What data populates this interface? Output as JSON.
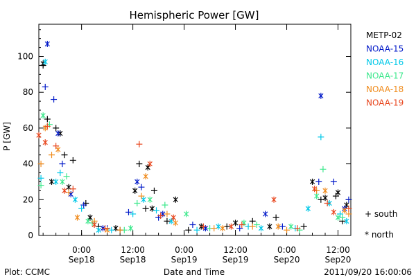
{
  "chart_data": {
    "type": "scatter",
    "title": "Hemispheric Power [GW]",
    "xlabel": "Date and Time",
    "ylabel": "P [GW]",
    "ylim": [
      0,
      118
    ],
    "xlim": [
      "2011-09-17T14:00",
      "2011-09-20T15:00"
    ],
    "yticks": [
      0,
      20,
      40,
      60,
      80,
      100
    ],
    "xticks": [
      {
        "time": "2011-09-18T00:00",
        "label1": "0:00",
        "label2": "Sep18"
      },
      {
        "time": "2011-09-18T12:00",
        "label1": "12:00",
        "label2": "Sep18"
      },
      {
        "time": "2011-09-19T00:00",
        "label1": "0:00",
        "label2": "Sep19"
      },
      {
        "time": "2011-09-19T12:00",
        "label1": "12:00",
        "label2": "Sep19"
      },
      {
        "time": "2011-09-20T00:00",
        "label1": "0:00",
        "label2": "Sep20"
      },
      {
        "time": "2011-09-20T12:00",
        "label1": "12:00",
        "label2": "Sep20"
      }
    ],
    "grid": false,
    "legend_position": "right",
    "series": [
      {
        "name": "METP-02",
        "color": "#000000",
        "south": [
          [
            "2011-09-17T15:00",
            95
          ],
          [
            "2011-09-17T16:00",
            65
          ],
          [
            "2011-09-17T18:00",
            60
          ],
          [
            "2011-09-17T20:00",
            45
          ],
          [
            "2011-09-17T22:00",
            42
          ],
          [
            "2011-09-18T01:00",
            18
          ],
          [
            "2011-09-18T04:00",
            5
          ],
          [
            "2011-09-18T09:00",
            3
          ],
          [
            "2011-09-18T13:30",
            40
          ],
          [
            "2011-09-18T15:00",
            15
          ],
          [
            "2011-09-18T17:00",
            25
          ],
          [
            "2011-09-18T20:00",
            8
          ],
          [
            "2011-09-19T01:00",
            3
          ],
          [
            "2011-09-19T10:00",
            5
          ],
          [
            "2011-09-19T16:00",
            8
          ],
          [
            "2011-09-19T21:30",
            10
          ],
          [
            "2011-09-20T04:00",
            5
          ],
          [
            "2011-09-20T08:00",
            20
          ],
          [
            "2011-09-20T11:30",
            22
          ],
          [
            "2011-09-20T13:00",
            8
          ]
        ],
        "north": [
          [
            "2011-09-17T15:00",
            96
          ],
          [
            "2011-09-17T17:00",
            30
          ],
          [
            "2011-09-17T19:00",
            57
          ],
          [
            "2011-09-17T21:00",
            27
          ],
          [
            "2011-09-18T02:00",
            10
          ],
          [
            "2011-09-18T08:00",
            4
          ],
          [
            "2011-09-18T12:30",
            25
          ],
          [
            "2011-09-18T15:30",
            38
          ],
          [
            "2011-09-18T16:30",
            15
          ],
          [
            "2011-09-18T22:00",
            20
          ],
          [
            "2011-09-19T04:00",
            5
          ],
          [
            "2011-09-19T12:00",
            7
          ],
          [
            "2011-09-19T20:00",
            5
          ],
          [
            "2011-09-20T06:00",
            30
          ],
          [
            "2011-09-20T09:00",
            21
          ],
          [
            "2011-09-20T12:00",
            24
          ],
          [
            "2011-09-20T14:00",
            17
          ]
        ]
      },
      {
        "name": "NOAA-15",
        "color": "#0018c8",
        "south": [
          [
            "2011-09-17T15:30",
            83
          ],
          [
            "2011-09-17T17:30",
            76
          ],
          [
            "2011-09-17T19:30",
            40
          ],
          [
            "2011-09-18T00:30",
            17
          ],
          [
            "2011-09-18T06:00",
            4
          ],
          [
            "2011-09-18T11:00",
            13
          ],
          [
            "2011-09-18T14:00",
            27
          ],
          [
            "2011-09-18T18:00",
            10
          ],
          [
            "2011-09-19T02:00",
            6
          ],
          [
            "2011-09-19T13:00",
            4
          ],
          [
            "2011-09-19T23:00",
            5
          ],
          [
            "2011-09-20T07:30",
            30
          ],
          [
            "2011-09-20T11:00",
            30
          ],
          [
            "2011-09-20T14:30",
            20
          ]
        ],
        "north": [
          [
            "2011-09-17T16:00",
            107
          ],
          [
            "2011-09-17T18:30",
            57
          ],
          [
            "2011-09-17T21:30",
            23
          ],
          [
            "2011-09-18T05:00",
            4
          ],
          [
            "2011-09-18T13:00",
            30
          ],
          [
            "2011-09-18T19:00",
            12
          ],
          [
            "2011-09-19T05:00",
            4
          ],
          [
            "2011-09-19T19:00",
            12
          ],
          [
            "2011-09-20T08:00",
            78
          ],
          [
            "2011-09-20T13:30",
            15
          ]
        ]
      },
      {
        "name": "NOAA-16",
        "color": "#00c8e8",
        "south": [
          [
            "2011-09-17T14:30",
            32
          ],
          [
            "2011-09-17T19:00",
            35
          ],
          [
            "2011-09-18T00:00",
            15
          ],
          [
            "2011-09-18T07:00",
            3
          ],
          [
            "2011-09-18T12:00",
            12
          ],
          [
            "2011-09-18T17:30",
            14
          ],
          [
            "2011-09-19T03:00",
            3
          ],
          [
            "2011-09-19T15:00",
            5
          ],
          [
            "2011-09-20T02:00",
            4
          ],
          [
            "2011-09-20T08:00",
            55
          ],
          [
            "2011-09-20T12:30",
            12
          ]
        ],
        "north": [
          [
            "2011-09-17T15:30",
            97
          ],
          [
            "2011-09-17T18:00",
            30
          ],
          [
            "2011-09-17T22:30",
            20
          ],
          [
            "2011-09-18T04:00",
            3
          ],
          [
            "2011-09-18T14:30",
            20
          ],
          [
            "2011-09-18T21:00",
            8
          ],
          [
            "2011-09-19T08:00",
            5
          ],
          [
            "2011-09-19T18:00",
            4
          ],
          [
            "2011-09-20T05:00",
            15
          ],
          [
            "2011-09-20T10:00",
            18
          ],
          [
            "2011-09-20T14:00",
            8
          ]
        ]
      },
      {
        "name": "NOAA-17",
        "color": "#3ce88c",
        "south": [
          [
            "2011-09-17T14:30",
            28
          ],
          [
            "2011-09-17T16:30",
            62
          ],
          [
            "2011-09-17T20:30",
            33
          ],
          [
            "2011-09-18T02:30",
            7
          ],
          [
            "2011-09-18T10:00",
            3
          ],
          [
            "2011-09-18T13:00",
            18
          ],
          [
            "2011-09-18T19:30",
            17
          ],
          [
            "2011-09-19T06:00",
            4
          ],
          [
            "2011-09-19T17:00",
            6
          ],
          [
            "2011-09-20T03:00",
            3
          ],
          [
            "2011-09-20T08:30",
            37
          ],
          [
            "2011-09-20T13:00",
            10
          ]
        ],
        "north": [
          [
            "2011-09-17T15:00",
            67
          ],
          [
            "2011-09-17T19:30",
            30
          ],
          [
            "2011-09-18T01:30",
            8
          ],
          [
            "2011-09-18T11:30",
            4
          ],
          [
            "2011-09-18T16:00",
            20
          ],
          [
            "2011-09-19T00:30",
            12
          ],
          [
            "2011-09-19T14:00",
            7
          ],
          [
            "2011-09-20T01:00",
            5
          ],
          [
            "2011-09-20T07:00",
            22
          ],
          [
            "2011-09-20T12:00",
            10
          ]
        ]
      },
      {
        "name": "NOAA-18",
        "color": "#f08c1e",
        "south": [
          [
            "2011-09-17T14:30",
            40
          ],
          [
            "2011-09-17T17:00",
            45
          ],
          [
            "2011-09-17T21:00",
            24
          ],
          [
            "2011-09-18T03:00",
            8
          ],
          [
            "2011-09-18T09:00",
            3
          ],
          [
            "2011-09-18T14:00",
            22
          ],
          [
            "2011-09-18T20:00",
            12
          ],
          [
            "2011-09-19T07:00",
            4
          ],
          [
            "2011-09-19T16:00",
            5
          ],
          [
            "2011-09-20T00:00",
            3
          ],
          [
            "2011-09-20T07:00",
            25
          ],
          [
            "2011-09-20T14:30",
            12
          ]
        ],
        "north": [
          [
            "2011-09-17T15:30",
            60
          ],
          [
            "2011-09-17T18:30",
            48
          ],
          [
            "2011-09-17T23:00",
            10
          ],
          [
            "2011-09-18T06:00",
            3
          ],
          [
            "2011-09-18T15:00",
            33
          ],
          [
            "2011-09-18T22:00",
            7
          ],
          [
            "2011-09-19T09:00",
            4
          ],
          [
            "2011-09-19T22:00",
            5
          ],
          [
            "2011-09-20T09:00",
            25
          ],
          [
            "2011-09-20T13:30",
            14
          ]
        ]
      },
      {
        "name": "NOAA-19",
        "color": "#e8461e",
        "south": [
          [
            "2011-09-17T16:00",
            61
          ],
          [
            "2011-09-17T18:00",
            50
          ],
          [
            "2011-09-17T22:00",
            26
          ],
          [
            "2011-09-18T05:30",
            4
          ],
          [
            "2011-09-18T13:30",
            51
          ],
          [
            "2011-09-18T18:30",
            11
          ],
          [
            "2011-09-19T04:30",
            5
          ],
          [
            "2011-09-19T13:30",
            6
          ],
          [
            "2011-09-20T02:30",
            4
          ],
          [
            "2011-09-20T09:30",
            18
          ],
          [
            "2011-09-20T14:30",
            15
          ]
        ],
        "north": [
          [
            "2011-09-17T14:00",
            56
          ],
          [
            "2011-09-17T15:30",
            52
          ],
          [
            "2011-09-17T20:00",
            25
          ],
          [
            "2011-09-18T03:00",
            6
          ],
          [
            "2011-09-18T16:00",
            40
          ],
          [
            "2011-09-18T21:30",
            10
          ],
          [
            "2011-09-19T11:00",
            5
          ],
          [
            "2011-09-19T21:00",
            20
          ],
          [
            "2011-09-20T06:30",
            26
          ],
          [
            "2011-09-20T11:00",
            13
          ]
        ]
      }
    ],
    "marker_legend": [
      {
        "symbol": "+",
        "label": "south"
      },
      {
        "symbol": "*",
        "label": "north"
      }
    ]
  },
  "footer": {
    "plot_credit": "Plot: CCMC",
    "timestamp": "2011/09/20 16:00:06"
  }
}
